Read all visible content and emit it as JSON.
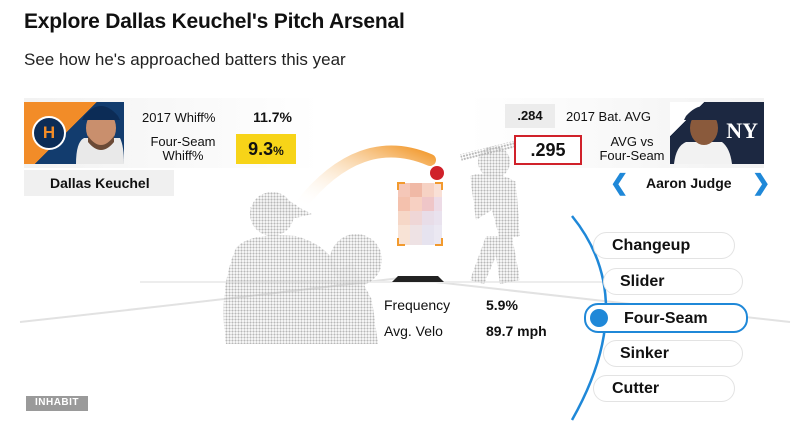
{
  "header": {
    "title": "Explore Dallas Keuchel's Pitch Arsenal",
    "subtitle": "See how he's approached batters this year"
  },
  "pitcher": {
    "name": "Dallas Keuchel",
    "team_logo": "astros-logo",
    "stat1_label": "2017 Whiff%",
    "stat1_value": "11.7%",
    "stat2_label_line1": "Four-Seam",
    "stat2_label_line2": "Whiff%",
    "stat2_value": "9.3",
    "stat2_unit": "%",
    "highlight_color": "#f7d418"
  },
  "batter": {
    "name": "Aaron Judge",
    "team_logo": "yankees-logo",
    "stat1_value": ".284",
    "stat1_label": "2017 Bat. AVG",
    "stat2_value": ".295",
    "stat2_label_line1": "AVG vs",
    "stat2_label_line2": "Four-Seam",
    "highlight_color": "#d0212a"
  },
  "nav": {
    "prev_icon": "chevron-left-icon",
    "next_icon": "chevron-right-icon",
    "prev_glyph": "❮",
    "next_glyph": "❯",
    "accent": "#1f88d8"
  },
  "pitch_info": {
    "frequency_label": "Frequency",
    "frequency_value": "5.9%",
    "velo_label": "Avg. Velo",
    "velo_value": "89.7 mph"
  },
  "pitches": [
    {
      "label": "Changeup",
      "selected": false
    },
    {
      "label": "Slider",
      "selected": false
    },
    {
      "label": "Four-Seam",
      "selected": true
    },
    {
      "label": "Sinker",
      "selected": false
    },
    {
      "label": "Cutter",
      "selected": false
    }
  ],
  "footer": {
    "brand": "INHABIT"
  }
}
